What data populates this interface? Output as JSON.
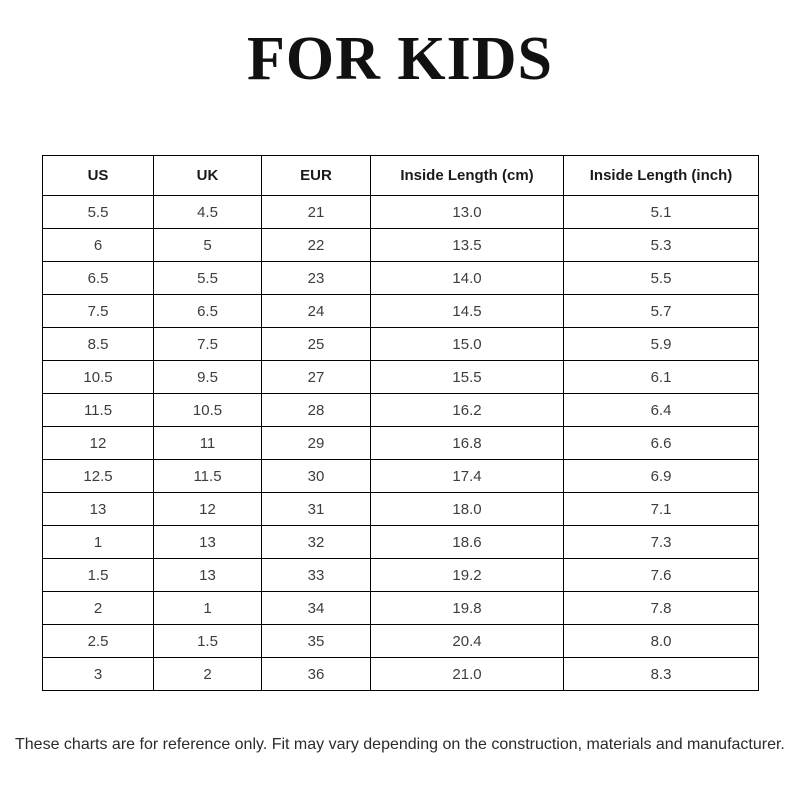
{
  "title": "FOR KIDS",
  "chart_data": {
    "type": "table",
    "title": "FOR KIDS",
    "headers": [
      "US",
      "UK",
      "EUR",
      "Inside Length (cm)",
      "Inside Length (inch)"
    ],
    "rows": [
      [
        "5.5",
        "4.5",
        "21",
        "13.0",
        "5.1"
      ],
      [
        "6",
        "5",
        "22",
        "13.5",
        "5.3"
      ],
      [
        "6.5",
        "5.5",
        "23",
        "14.0",
        "5.5"
      ],
      [
        "7.5",
        "6.5",
        "24",
        "14.5",
        "5.7"
      ],
      [
        "8.5",
        "7.5",
        "25",
        "15.0",
        "5.9"
      ],
      [
        "10.5",
        "9.5",
        "27",
        "15.5",
        "6.1"
      ],
      [
        "11.5",
        "10.5",
        "28",
        "16.2",
        "6.4"
      ],
      [
        "12",
        "11",
        "29",
        "16.8",
        "6.6"
      ],
      [
        "12.5",
        "11.5",
        "30",
        "17.4",
        "6.9"
      ],
      [
        "13",
        "12",
        "31",
        "18.0",
        "7.1"
      ],
      [
        "1",
        "13",
        "32",
        "18.6",
        "7.3"
      ],
      [
        "1.5",
        "13",
        "33",
        "19.2",
        "7.6"
      ],
      [
        "2",
        "1",
        "34",
        "19.8",
        "7.8"
      ],
      [
        "2.5",
        "1.5",
        "35",
        "20.4",
        "8.0"
      ],
      [
        "3",
        "2",
        "36",
        "21.0",
        "8.3"
      ]
    ]
  },
  "footer": {
    "note": "These charts are for reference only. Fit may vary depending on the construction, materials and manufacturer."
  },
  "colors": {
    "background": "#ffffff",
    "border": "#000000",
    "title_text": "#111111",
    "header_text": "#1a1a1a",
    "cell_text": "#3d3d3d",
    "footer_text": "#2b2b2b"
  }
}
